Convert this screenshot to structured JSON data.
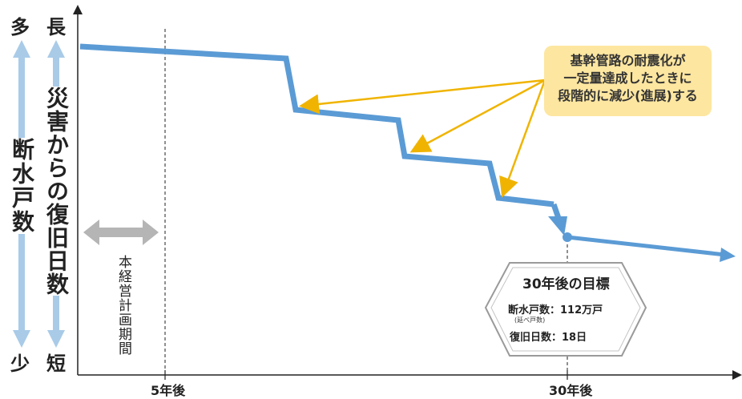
{
  "axis": {
    "top_left": "多",
    "top_right": "長",
    "bottom_left": "少",
    "bottom_right": "短",
    "left_label": "断水戸数",
    "right_label": "災害からの復旧日数"
  },
  "x_ticks": [
    "5年後",
    "30年後"
  ],
  "period_label": "本経営計画期間",
  "callout": {
    "lines": [
      "基幹管路の耐震化が",
      "一定量達成したときに",
      "段階的に減少(進展)する"
    ]
  },
  "target": {
    "title": "30年後の目標",
    "outage_label": "断水戸数：112万戸",
    "outage_note": "(延べ戸数)",
    "recovery_label": "復旧日数：18日"
  },
  "colors": {
    "line": "#5b9bd5",
    "axis_arrow": "#a9cbe8",
    "callout_arrow": "#f0b400",
    "callout_bg": "#fde6a0",
    "period_arrow": "#b5b5b5"
  }
}
